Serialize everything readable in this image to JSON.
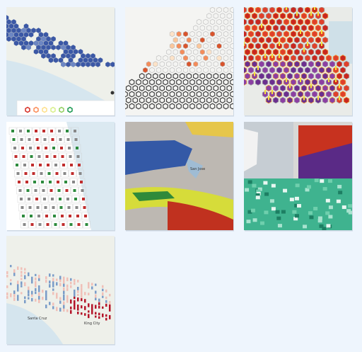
{
  "gallery": {
    "thumbnails": [
      {
        "labels": []
      },
      {
        "labels": []
      },
      {
        "labels": []
      },
      {
        "labels": []
      },
      {
        "labels": [
          "San Jose"
        ]
      },
      {
        "labels": []
      },
      {
        "labels": [
          "Santa Cruz",
          "King City"
        ]
      }
    ]
  }
}
